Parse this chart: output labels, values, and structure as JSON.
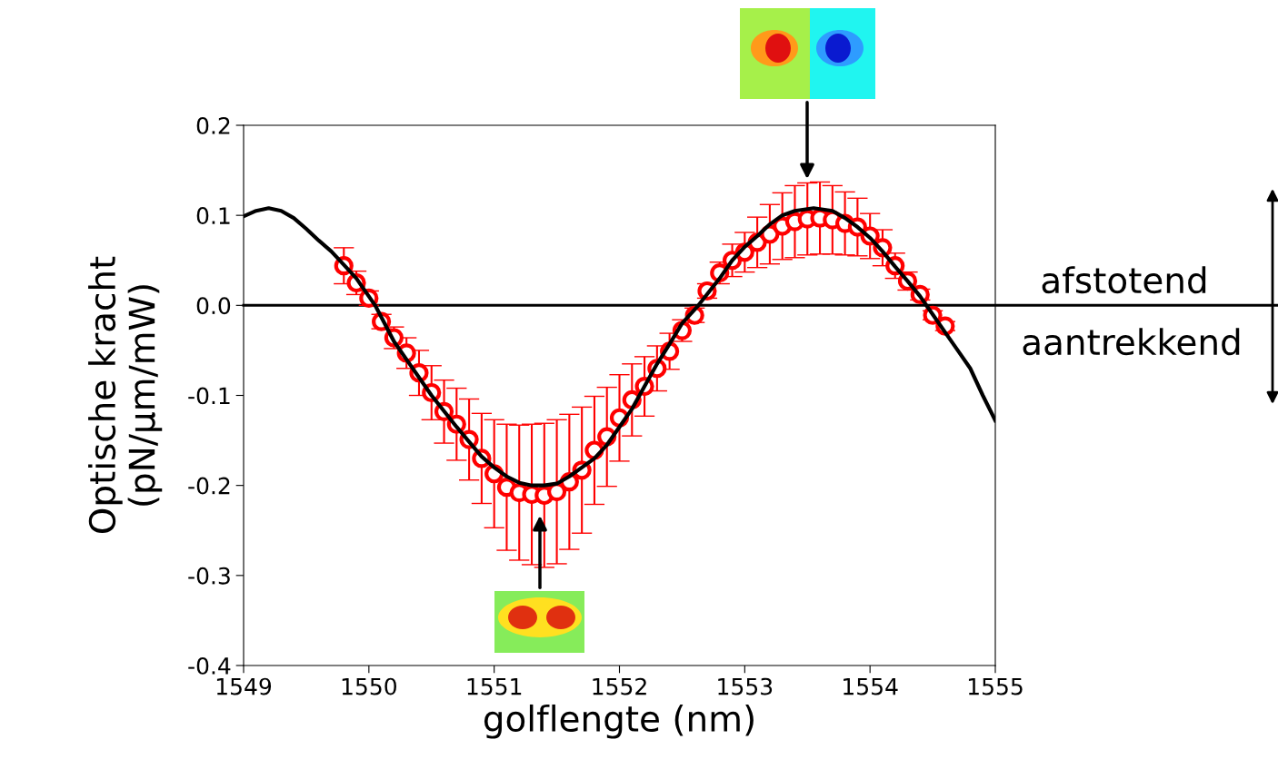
{
  "chart_data": {
    "type": "scatter",
    "xlabel": "golflengte (nm)",
    "ylabel": "Optische kracht\n(pN/µm/mW)",
    "xlim": [
      1549,
      1555
    ],
    "ylim": [
      -0.4,
      0.2
    ],
    "xticks": [
      1549,
      1550,
      1551,
      1552,
      1553,
      1554,
      1555
    ],
    "yticks": [
      -0.4,
      -0.3,
      -0.2,
      -0.1,
      {
        "value": 0,
        "label": "0.0"
      },
      0.1,
      0.2
    ],
    "grid": false,
    "legend": false,
    "series": [
      {
        "type": "line",
        "color": "#000000",
        "marker": "none",
        "line_style": "solid",
        "x": [
          1549.0,
          1549.1,
          1549.2,
          1549.3,
          1549.4,
          1549.5,
          1549.6,
          1549.7,
          1549.8,
          1549.9,
          1550.05,
          1550.2,
          1550.3,
          1550.5,
          1550.7,
          1550.9,
          1551.0,
          1551.1,
          1551.2,
          1551.3,
          1551.4,
          1551.5,
          1551.6,
          1551.7,
          1551.8,
          1551.9,
          1552.0,
          1552.1,
          1552.2,
          1552.3,
          1552.4,
          1552.5,
          1552.63,
          1552.8,
          1552.9,
          1553.0,
          1553.1,
          1553.2,
          1553.3,
          1553.4,
          1553.55,
          1553.7,
          1553.8,
          1553.9,
          1554.0,
          1554.1,
          1554.2,
          1554.3,
          1554.4,
          1554.5,
          1554.6,
          1554.7,
          1554.8,
          1554.9,
          1555.0
        ],
        "values": [
          0.099,
          0.105,
          0.108,
          0.105,
          0.097,
          0.085,
          0.072,
          0.06,
          0.045,
          0.03,
          0,
          -0.04,
          -0.06,
          -0.1,
          -0.135,
          -0.168,
          -0.18,
          -0.19,
          -0.197,
          -0.2,
          -0.2,
          -0.198,
          -0.19,
          -0.18,
          -0.17,
          -0.155,
          -0.135,
          -0.115,
          -0.09,
          -0.065,
          -0.043,
          -0.02,
          0,
          0.03,
          0.05,
          0.065,
          0.077,
          0.09,
          0.1,
          0.105,
          0.108,
          0.105,
          0.097,
          0.087,
          0.075,
          0.06,
          0.043,
          0.027,
          0.01,
          -0.01,
          -0.03,
          -0.05,
          -0.07,
          -0.1,
          -0.128
        ]
      },
      {
        "color": "#ff0000",
        "marker": "circle",
        "x": [
          1549.8,
          1549.9,
          1550.0,
          1550.1,
          1550.2,
          1550.3,
          1550.4,
          1550.5,
          1550.6,
          1550.7,
          1550.8,
          1550.9,
          1551.0,
          1551.1,
          1551.2,
          1551.3,
          1551.4,
          1551.5,
          1551.6,
          1551.7,
          1551.8,
          1551.9,
          1552.0,
          1552.1,
          1552.2,
          1552.3,
          1552.4,
          1552.5,
          1552.6,
          1552.7,
          1552.8,
          1552.9,
          1553.0,
          1553.1,
          1553.2,
          1553.3,
          1553.4,
          1553.5,
          1553.6,
          1553.7,
          1553.8,
          1553.9,
          1554.0,
          1554.1,
          1554.2,
          1554.3,
          1554.4,
          1554.5,
          1554.6
        ],
        "values": [
          0.044,
          0.025,
          0.008,
          -0.018,
          -0.036,
          -0.053,
          -0.075,
          -0.097,
          -0.118,
          -0.132,
          -0.149,
          -0.17,
          -0.187,
          -0.202,
          -0.208,
          -0.21,
          -0.211,
          -0.207,
          -0.196,
          -0.183,
          -0.161,
          -0.146,
          -0.125,
          -0.105,
          -0.09,
          -0.07,
          -0.051,
          -0.028,
          -0.011,
          0.016,
          0.036,
          0.05,
          0.059,
          0.07,
          0.079,
          0.088,
          0.093,
          0.096,
          0.097,
          0.095,
          0.091,
          0.087,
          0.077,
          0.064,
          0.044,
          0.027,
          0.012,
          -0.011,
          -0.023
        ],
        "errors": [
          0.02,
          0.013,
          0.008,
          0.008,
          0.012,
          0.017,
          0.025,
          0.03,
          0.035,
          0.04,
          0.045,
          0.05,
          0.06,
          0.07,
          0.075,
          0.078,
          0.08,
          0.08,
          0.075,
          0.07,
          0.06,
          0.055,
          0.048,
          0.04,
          0.033,
          0.025,
          0.02,
          0.012,
          0.008,
          0.008,
          0.012,
          0.018,
          0.022,
          0.028,
          0.033,
          0.037,
          0.04,
          0.04,
          0.04,
          0.038,
          0.035,
          0.032,
          0.025,
          0.02,
          0.014,
          0.01,
          0.006,
          0.005,
          0.005
        ]
      }
    ],
    "ref_lines": [
      {
        "axis": "y",
        "value": 0,
        "color": "#000000",
        "line_style": "solid"
      }
    ],
    "annotations": [
      "afstotend",
      "aantrekkend"
    ]
  }
}
